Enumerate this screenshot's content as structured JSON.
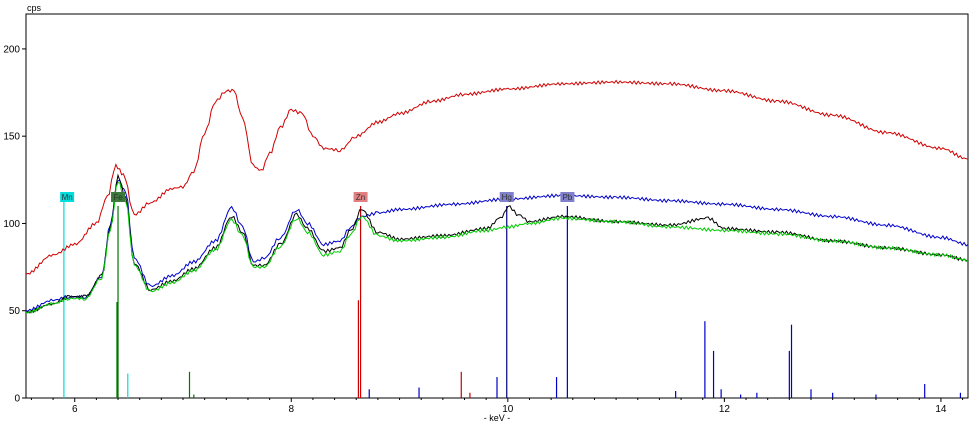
{
  "chart_data": {
    "type": "line",
    "xlabel": "- keV -",
    "ylabel": "cps",
    "xlim": [
      5.55,
      14.25
    ],
    "ylim": [
      0,
      220
    ],
    "xticks": [
      6,
      8,
      10,
      12,
      14
    ],
    "yticks": [
      0,
      50,
      100,
      150,
      200
    ],
    "grid": false,
    "colors": {
      "red": "#d00000",
      "blue": "#0000cc",
      "black": "#000000",
      "green": "#00cc00"
    },
    "series": [
      {
        "color": "red",
        "x": [
          5.55,
          5.8,
          6.0,
          6.2,
          6.3,
          6.38,
          6.45,
          6.55,
          6.7,
          6.9,
          7.0,
          7.1,
          7.2,
          7.3,
          7.4,
          7.47,
          7.55,
          7.65,
          7.72,
          7.8,
          7.9,
          8.0,
          8.1,
          8.2,
          8.3,
          8.45,
          8.6,
          8.8,
          9.0,
          9.3,
          9.6,
          10.0,
          10.5,
          11.0,
          11.5,
          12.0,
          12.5,
          13.0,
          13.5,
          14.0,
          14.25
        ],
        "y": [
          71,
          82,
          88,
          100,
          115,
          133,
          128,
          105,
          112,
          120,
          121,
          130,
          152,
          170,
          176,
          176,
          160,
          133,
          130,
          140,
          155,
          165,
          163,
          150,
          143,
          142,
          150,
          158,
          163,
          170,
          174,
          177,
          180,
          181,
          180,
          176,
          170,
          162,
          152,
          143,
          137
        ]
      },
      {
        "color": "blue",
        "x": [
          5.55,
          5.8,
          5.95,
          6.1,
          6.25,
          6.33,
          6.4,
          6.47,
          6.55,
          6.7,
          6.9,
          7.1,
          7.3,
          7.45,
          7.55,
          7.65,
          7.75,
          7.9,
          8.05,
          8.15,
          8.3,
          8.45,
          8.55,
          8.65,
          8.8,
          9.0,
          9.5,
          10.0,
          10.5,
          11.0,
          11.5,
          12.0,
          12.5,
          13.0,
          13.5,
          14.0,
          14.25
        ],
        "y": [
          50,
          56,
          58,
          58,
          70,
          100,
          125,
          118,
          80,
          64,
          70,
          78,
          90,
          109,
          98,
          78,
          80,
          92,
          108,
          100,
          88,
          90,
          98,
          104,
          106,
          108,
          111,
          114,
          116,
          115,
          113,
          111,
          108,
          104,
          99,
          92,
          88
        ]
      },
      {
        "color": "black",
        "x": [
          5.55,
          5.8,
          5.95,
          6.1,
          6.25,
          6.33,
          6.4,
          6.47,
          6.55,
          6.7,
          6.9,
          7.1,
          7.3,
          7.45,
          7.55,
          7.65,
          7.75,
          7.9,
          8.05,
          8.15,
          8.3,
          8.45,
          8.55,
          8.65,
          8.8,
          9.0,
          9.4,
          9.8,
          9.95,
          10.0,
          10.1,
          10.2,
          10.5,
          11.0,
          11.5,
          11.85,
          12.0,
          12.5,
          13.0,
          13.5,
          14.0,
          14.25
        ],
        "y": [
          49,
          54,
          58,
          58,
          70,
          98,
          127,
          115,
          77,
          62,
          67,
          74,
          86,
          104,
          95,
          76,
          76,
          88,
          105,
          97,
          84,
          86,
          96,
          108,
          95,
          91,
          93,
          97,
          104,
          110,
          105,
          101,
          104,
          101,
          99,
          103,
          97,
          95,
          90,
          86,
          82,
          79
        ]
      },
      {
        "color": "green",
        "x": [
          5.55,
          5.8,
          5.95,
          6.1,
          6.25,
          6.33,
          6.4,
          6.47,
          6.55,
          6.7,
          6.9,
          7.1,
          7.3,
          7.45,
          7.55,
          7.65,
          7.75,
          7.9,
          8.05,
          8.15,
          8.3,
          8.45,
          8.55,
          8.65,
          8.8,
          9.0,
          9.4,
          9.8,
          10.0,
          10.2,
          10.5,
          11.0,
          11.5,
          12.0,
          12.5,
          13.0,
          13.5,
          14.0,
          14.25
        ],
        "y": [
          49,
          54,
          57,
          57,
          69,
          97,
          124,
          113,
          76,
          61,
          66,
          73,
          85,
          102,
          93,
          75,
          75,
          87,
          103,
          95,
          82,
          84,
          94,
          104,
          93,
          90,
          92,
          96,
          98,
          100,
          103,
          101,
          98,
          96,
          94,
          90,
          86,
          82,
          79
        ]
      }
    ],
    "element_labels": [
      {
        "text": "Mn",
        "x": 5.93,
        "color": "#00dddd"
      },
      {
        "text": "Fe",
        "x": 6.4,
        "color": "#3a7a3a"
      },
      {
        "text": "Zn",
        "x": 8.64,
        "color": "#e08080"
      },
      {
        "text": "Hg",
        "x": 9.99,
        "color": "#8080cc"
      },
      {
        "text": "Pb",
        "x": 10.55,
        "color": "#8080cc"
      }
    ],
    "marker_lines": [
      {
        "x": 5.9,
        "y": 115,
        "color": "#00dddd"
      },
      {
        "x": 6.49,
        "y": 14,
        "color": "#00dddd"
      },
      {
        "x": 6.4,
        "y": 110,
        "color": "#007700"
      },
      {
        "x": 6.39,
        "y": 55,
        "color": "#007700"
      },
      {
        "x": 7.06,
        "y": 15,
        "color": "#007700"
      },
      {
        "x": 7.1,
        "y": 2,
        "color": "#007700"
      },
      {
        "x": 8.64,
        "y": 110,
        "color": "#cc0000"
      },
      {
        "x": 8.62,
        "y": 56,
        "color": "#cc0000"
      },
      {
        "x": 9.57,
        "y": 15,
        "color": "#cc0000"
      },
      {
        "x": 9.65,
        "y": 3,
        "color": "#cc0000"
      },
      {
        "x": 9.99,
        "y": 110,
        "color": "#000080"
      },
      {
        "x": 10.55,
        "y": 110,
        "color": "#0000cc"
      },
      {
        "x": 8.72,
        "y": 5,
        "color": "#0000cc"
      },
      {
        "x": 9.18,
        "y": 6,
        "color": "#0000cc"
      },
      {
        "x": 9.9,
        "y": 12,
        "color": "#0000cc"
      },
      {
        "x": 10.45,
        "y": 12,
        "color": "#0000cc"
      },
      {
        "x": 11.55,
        "y": 4,
        "color": "#0000cc"
      },
      {
        "x": 11.82,
        "y": 44,
        "color": "#0000cc"
      },
      {
        "x": 11.9,
        "y": 27,
        "color": "#0000cc"
      },
      {
        "x": 11.97,
        "y": 5,
        "color": "#0000cc"
      },
      {
        "x": 12.15,
        "y": 2,
        "color": "#0000cc"
      },
      {
        "x": 12.3,
        "y": 3,
        "color": "#0000cc"
      },
      {
        "x": 12.6,
        "y": 27,
        "color": "#0000cc"
      },
      {
        "x": 12.62,
        "y": 42,
        "color": "#0000cc"
      },
      {
        "x": 12.8,
        "y": 5,
        "color": "#0000cc"
      },
      {
        "x": 13.0,
        "y": 3,
        "color": "#0000cc"
      },
      {
        "x": 13.4,
        "y": 2,
        "color": "#0000cc"
      },
      {
        "x": 13.85,
        "y": 8,
        "color": "#0000cc"
      },
      {
        "x": 14.18,
        "y": 3,
        "color": "#0000cc"
      }
    ]
  }
}
